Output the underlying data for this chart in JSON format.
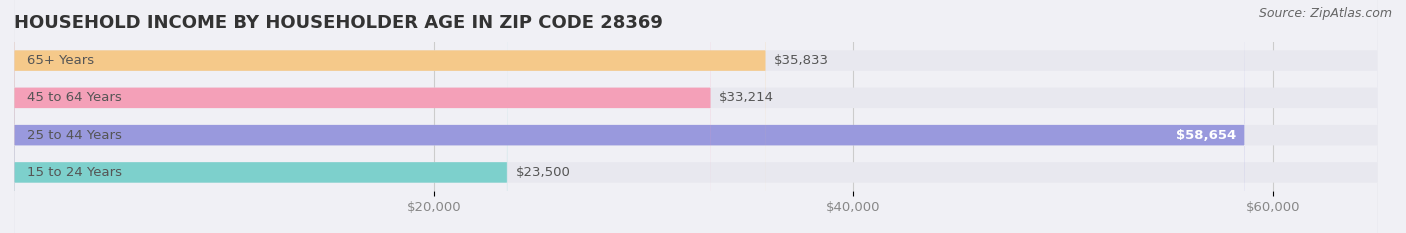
{
  "title": "HOUSEHOLD INCOME BY HOUSEHOLDER AGE IN ZIP CODE 28369",
  "source": "Source: ZipAtlas.com",
  "categories": [
    "15 to 24 Years",
    "25 to 44 Years",
    "45 to 64 Years",
    "65+ Years"
  ],
  "values": [
    23500,
    58654,
    33214,
    35833
  ],
  "bar_colors": [
    "#7dd0cc",
    "#9999dd",
    "#f4a0b8",
    "#f5c98a"
  ],
  "label_colors": [
    "#555555",
    "#ffffff",
    "#555555",
    "#555555"
  ],
  "value_labels": [
    "$23,500",
    "$58,654",
    "$33,214",
    "$35,833"
  ],
  "bar_height": 0.55,
  "background_color": "#f0f0f5",
  "bar_bg_color": "#e8e8ef",
  "xlim": [
    0,
    65000
  ],
  "xticks": [
    20000,
    40000,
    60000
  ],
  "xtick_labels": [
    "$20,000",
    "$40,000",
    "$60,000"
  ],
  "title_fontsize": 13,
  "label_fontsize": 9.5,
  "value_fontsize": 9.5,
  "source_fontsize": 9,
  "axis_label_color": "#888888",
  "title_color": "#333333",
  "source_color": "#666666",
  "category_label_color": "#555555"
}
